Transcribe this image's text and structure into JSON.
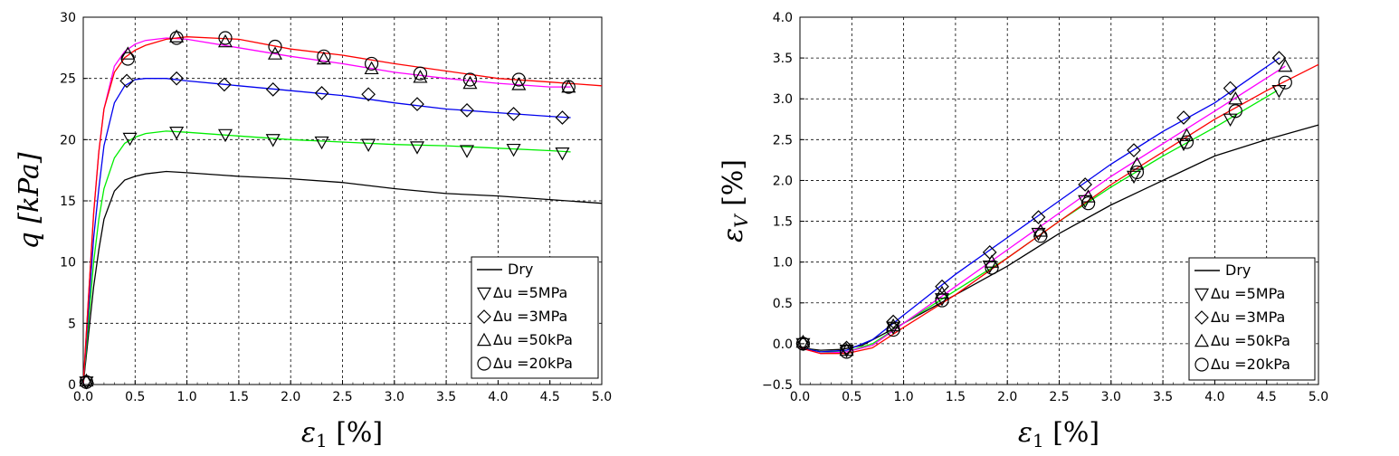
{
  "chart_data": [
    {
      "type": "line",
      "xlabel": "ε₁ [%]",
      "ylabel": "q [kPa]",
      "xlim": [
        0,
        5
      ],
      "ylim": [
        0,
        30
      ],
      "xticks": [
        "0.0",
        "0.5",
        "1.0",
        "1.5",
        "2.0",
        "2.5",
        "3.0",
        "3.5",
        "4.0",
        "4.5",
        "5.0"
      ],
      "yticks": [
        "0",
        "5",
        "10",
        "15",
        "20",
        "25",
        "30"
      ],
      "grid": true,
      "legend_position": "bottom-right",
      "series": [
        {
          "name": "Dry",
          "color": "#000000",
          "marker": "none",
          "x": [
            0,
            0.05,
            0.1,
            0.15,
            0.2,
            0.3,
            0.4,
            0.5,
            0.6,
            0.8,
            1.0,
            1.5,
            2.0,
            2.5,
            3.0,
            3.5,
            4.0,
            4.5,
            5.0
          ],
          "y": [
            0,
            4,
            8,
            11,
            13.5,
            15.8,
            16.7,
            17.0,
            17.2,
            17.4,
            17.3,
            17.0,
            16.8,
            16.5,
            16.0,
            15.6,
            15.4,
            15.1,
            14.8
          ]
        },
        {
          "name": "Δu =5MPa",
          "color": "#00ee00",
          "marker": "triangle-down",
          "x": [
            0,
            0.05,
            0.1,
            0.15,
            0.2,
            0.3,
            0.4,
            0.5,
            0.6,
            0.8,
            1.0,
            1.5,
            2.0,
            2.5,
            3.0,
            3.5,
            4.0,
            4.5,
            4.7
          ],
          "y": [
            0,
            5,
            10,
            13.5,
            16,
            18.5,
            19.7,
            20.2,
            20.5,
            20.7,
            20.6,
            20.3,
            20.0,
            19.8,
            19.6,
            19.5,
            19.3,
            19.1,
            19.0
          ]
        },
        {
          "name": "Δu =3MPa",
          "color": "#0000ee",
          "marker": "diamond",
          "x": [
            0,
            0.05,
            0.1,
            0.15,
            0.2,
            0.3,
            0.4,
            0.5,
            0.6,
            0.8,
            1.0,
            1.5,
            2.0,
            2.5,
            3.0,
            3.5,
            4.0,
            4.5,
            4.7
          ],
          "y": [
            0,
            6,
            12,
            16,
            19.5,
            23,
            24.4,
            24.9,
            25.0,
            25.0,
            24.8,
            24.4,
            24.0,
            23.6,
            23.0,
            22.5,
            22.2,
            21.9,
            21.8
          ]
        },
        {
          "name": "Δu =50kPa",
          "color": "#ff00ff",
          "marker": "triangle-up",
          "x": [
            0,
            0.05,
            0.1,
            0.15,
            0.2,
            0.3,
            0.4,
            0.5,
            0.6,
            0.8,
            1.0,
            1.5,
            2.0,
            2.5,
            3.0,
            3.5,
            4.0,
            4.5,
            4.7
          ],
          "y": [
            0,
            7,
            14,
            19,
            22.5,
            26,
            27.2,
            27.8,
            28.1,
            28.3,
            28.2,
            27.5,
            26.8,
            26.2,
            25.5,
            25.0,
            24.6,
            24.3,
            24.3
          ]
        },
        {
          "name": "Δu =20kPa",
          "color": "#ff0000",
          "marker": "circle",
          "x": [
            0,
            0.05,
            0.1,
            0.15,
            0.2,
            0.3,
            0.4,
            0.5,
            0.6,
            0.8,
            1.0,
            1.5,
            2.0,
            2.5,
            3.0,
            3.5,
            4.0,
            4.5,
            5.0
          ],
          "y": [
            0,
            7,
            14,
            19,
            22.5,
            25.5,
            26.7,
            27.3,
            27.7,
            28.2,
            28.4,
            28.2,
            27.4,
            26.9,
            26.2,
            25.6,
            25.0,
            24.7,
            24.4
          ]
        }
      ],
      "marker_points": {
        "Δu =5MPa": {
          "x": [
            0.03,
            0.45,
            0.9,
            1.37,
            1.83,
            2.3,
            2.75,
            3.22,
            3.7,
            4.15,
            4.62
          ],
          "y": [
            0.2,
            20.1,
            20.6,
            20.4,
            20.0,
            19.8,
            19.6,
            19.4,
            19.1,
            19.2,
            18.9
          ]
        },
        "Δu =3MPa": {
          "x": [
            0.03,
            0.42,
            0.9,
            1.36,
            1.83,
            2.3,
            2.75,
            3.22,
            3.7,
            4.15,
            4.62
          ],
          "y": [
            0.2,
            24.8,
            25.0,
            24.5,
            24.1,
            23.8,
            23.7,
            22.9,
            22.4,
            22.1,
            21.8
          ]
        },
        "Δu =50kPa": {
          "x": [
            0.03,
            0.43,
            0.9,
            1.37,
            1.85,
            2.32,
            2.78,
            3.25,
            3.73,
            4.2,
            4.68
          ],
          "y": [
            0.3,
            27.0,
            28.4,
            28.0,
            27.0,
            26.6,
            25.8,
            25.1,
            24.6,
            24.5,
            24.3
          ]
        },
        "Δu =20kPa": {
          "x": [
            0.03,
            0.43,
            0.9,
            1.37,
            1.85,
            2.32,
            2.78,
            3.25,
            3.73,
            4.2,
            4.68
          ],
          "y": [
            0.2,
            26.6,
            28.3,
            28.3,
            27.6,
            26.8,
            26.2,
            25.4,
            24.9,
            24.9,
            24.3
          ]
        }
      }
    },
    {
      "type": "line",
      "xlabel": "ε₁ [%]",
      "ylabel": "εV [%]",
      "xlim": [
        0,
        5
      ],
      "ylim": [
        -0.5,
        4.0
      ],
      "xticks": [
        "0.0",
        "0.5",
        "1.0",
        "1.5",
        "2.0",
        "2.5",
        "3.0",
        "3.5",
        "4.0",
        "4.5",
        "5.0"
      ],
      "yticks": [
        "−0.5",
        "0.0",
        "0.5",
        "1.0",
        "1.5",
        "2.0",
        "2.5",
        "3.0",
        "3.5",
        "4.0"
      ],
      "grid": true,
      "legend_position": "bottom-right",
      "series": [
        {
          "name": "Dry",
          "color": "#000000",
          "marker": "none",
          "x": [
            0,
            0.2,
            0.4,
            0.6,
            1.0,
            1.5,
            2.0,
            2.5,
            3.0,
            3.5,
            4.0,
            4.5,
            5.0
          ],
          "y": [
            -0.05,
            -0.08,
            -0.07,
            -0.02,
            0.25,
            0.6,
            0.95,
            1.35,
            1.7,
            2.0,
            2.3,
            2.5,
            2.68
          ]
        },
        {
          "name": "Δu =5MPa",
          "color": "#00ee00",
          "marker": "triangle-down",
          "x": [
            0,
            0.2,
            0.45,
            0.7,
            1.0,
            1.5,
            2.0,
            2.5,
            3.0,
            3.5,
            4.0,
            4.6
          ],
          "y": [
            -0.05,
            -0.1,
            -0.1,
            0.0,
            0.25,
            0.65,
            1.05,
            1.5,
            1.92,
            2.3,
            2.65,
            3.1
          ]
        },
        {
          "name": "Δu =3MPa",
          "color": "#0000ee",
          "marker": "diamond",
          "x": [
            0,
            0.2,
            0.45,
            0.7,
            1.0,
            1.5,
            2.0,
            2.5,
            3.0,
            3.5,
            4.0,
            4.62
          ],
          "y": [
            -0.05,
            -0.1,
            -0.08,
            0.05,
            0.35,
            0.85,
            1.3,
            1.75,
            2.2,
            2.6,
            2.95,
            3.5
          ]
        },
        {
          "name": "Δu =50kPa",
          "color": "#ff00ff",
          "marker": "triangle-up",
          "x": [
            0,
            0.2,
            0.45,
            0.7,
            1.0,
            1.5,
            2.0,
            2.5,
            3.0,
            3.5,
            4.0,
            4.68
          ],
          "y": [
            -0.05,
            -0.12,
            -0.1,
            -0.02,
            0.25,
            0.7,
            1.15,
            1.6,
            2.05,
            2.45,
            2.85,
            3.4
          ]
        },
        {
          "name": "Δu =20kPa",
          "color": "#ff0000",
          "marker": "circle",
          "x": [
            0,
            0.2,
            0.45,
            0.7,
            1.0,
            1.5,
            2.0,
            2.5,
            3.0,
            3.5,
            4.0,
            4.5,
            5.0
          ],
          "y": [
            -0.05,
            -0.12,
            -0.12,
            -0.05,
            0.2,
            0.6,
            1.05,
            1.5,
            1.95,
            2.35,
            2.75,
            3.1,
            3.42
          ]
        }
      ],
      "marker_points": {
        "Δu =5MPa": {
          "x": [
            0.03,
            0.45,
            0.9,
            1.37,
            1.83,
            2.3,
            2.75,
            3.22,
            3.7,
            4.15,
            4.62
          ],
          "y": [
            0.0,
            -0.08,
            0.2,
            0.55,
            0.95,
            1.35,
            1.75,
            2.05,
            2.45,
            2.75,
            3.1
          ]
        },
        "Δu =3MPa": {
          "x": [
            0.03,
            0.45,
            0.9,
            1.37,
            1.83,
            2.3,
            2.75,
            3.22,
            3.7,
            4.15,
            4.62
          ],
          "y": [
            0.0,
            -0.05,
            0.27,
            0.7,
            1.12,
            1.55,
            1.95,
            2.37,
            2.77,
            3.13,
            3.5
          ]
        },
        "Δu =50kPa": {
          "x": [
            0.03,
            0.45,
            0.9,
            1.37,
            1.85,
            2.32,
            2.78,
            3.25,
            3.73,
            4.2,
            4.68
          ],
          "y": [
            0.02,
            -0.08,
            0.22,
            0.62,
            1.0,
            1.38,
            1.8,
            2.2,
            2.55,
            3.0,
            3.4
          ]
        },
        "Δu =20kPa": {
          "x": [
            0.03,
            0.45,
            0.9,
            1.37,
            1.85,
            2.32,
            2.78,
            3.25,
            3.73,
            4.2,
            4.68
          ],
          "y": [
            0.0,
            -0.1,
            0.17,
            0.53,
            0.93,
            1.32,
            1.72,
            2.1,
            2.47,
            2.85,
            3.2
          ]
        }
      }
    }
  ]
}
